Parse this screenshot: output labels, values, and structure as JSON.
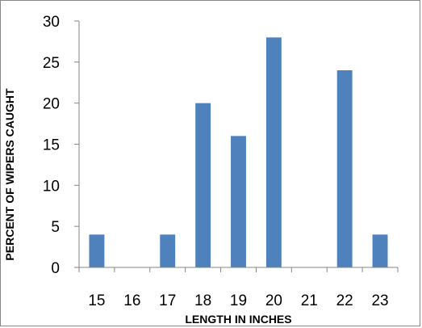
{
  "chart_data": {
    "type": "bar",
    "title": "",
    "xlabel": "LENGTH IN INCHES",
    "ylabel": "PERCENT OF WIPERS CAUGHT",
    "categories": [
      "15",
      "16",
      "17",
      "18",
      "19",
      "20",
      "21",
      "22",
      "23"
    ],
    "series": [
      {
        "values": [
          4,
          0,
          4,
          20,
          16,
          28,
          0,
          24,
          4
        ]
      }
    ],
    "ylim": [
      0,
      30
    ],
    "yticks": [
      0,
      5,
      10,
      15,
      20,
      25,
      30
    ],
    "grid": false,
    "legend": "none",
    "bar_color": "#4F81BD",
    "axis_color": "#868686"
  }
}
